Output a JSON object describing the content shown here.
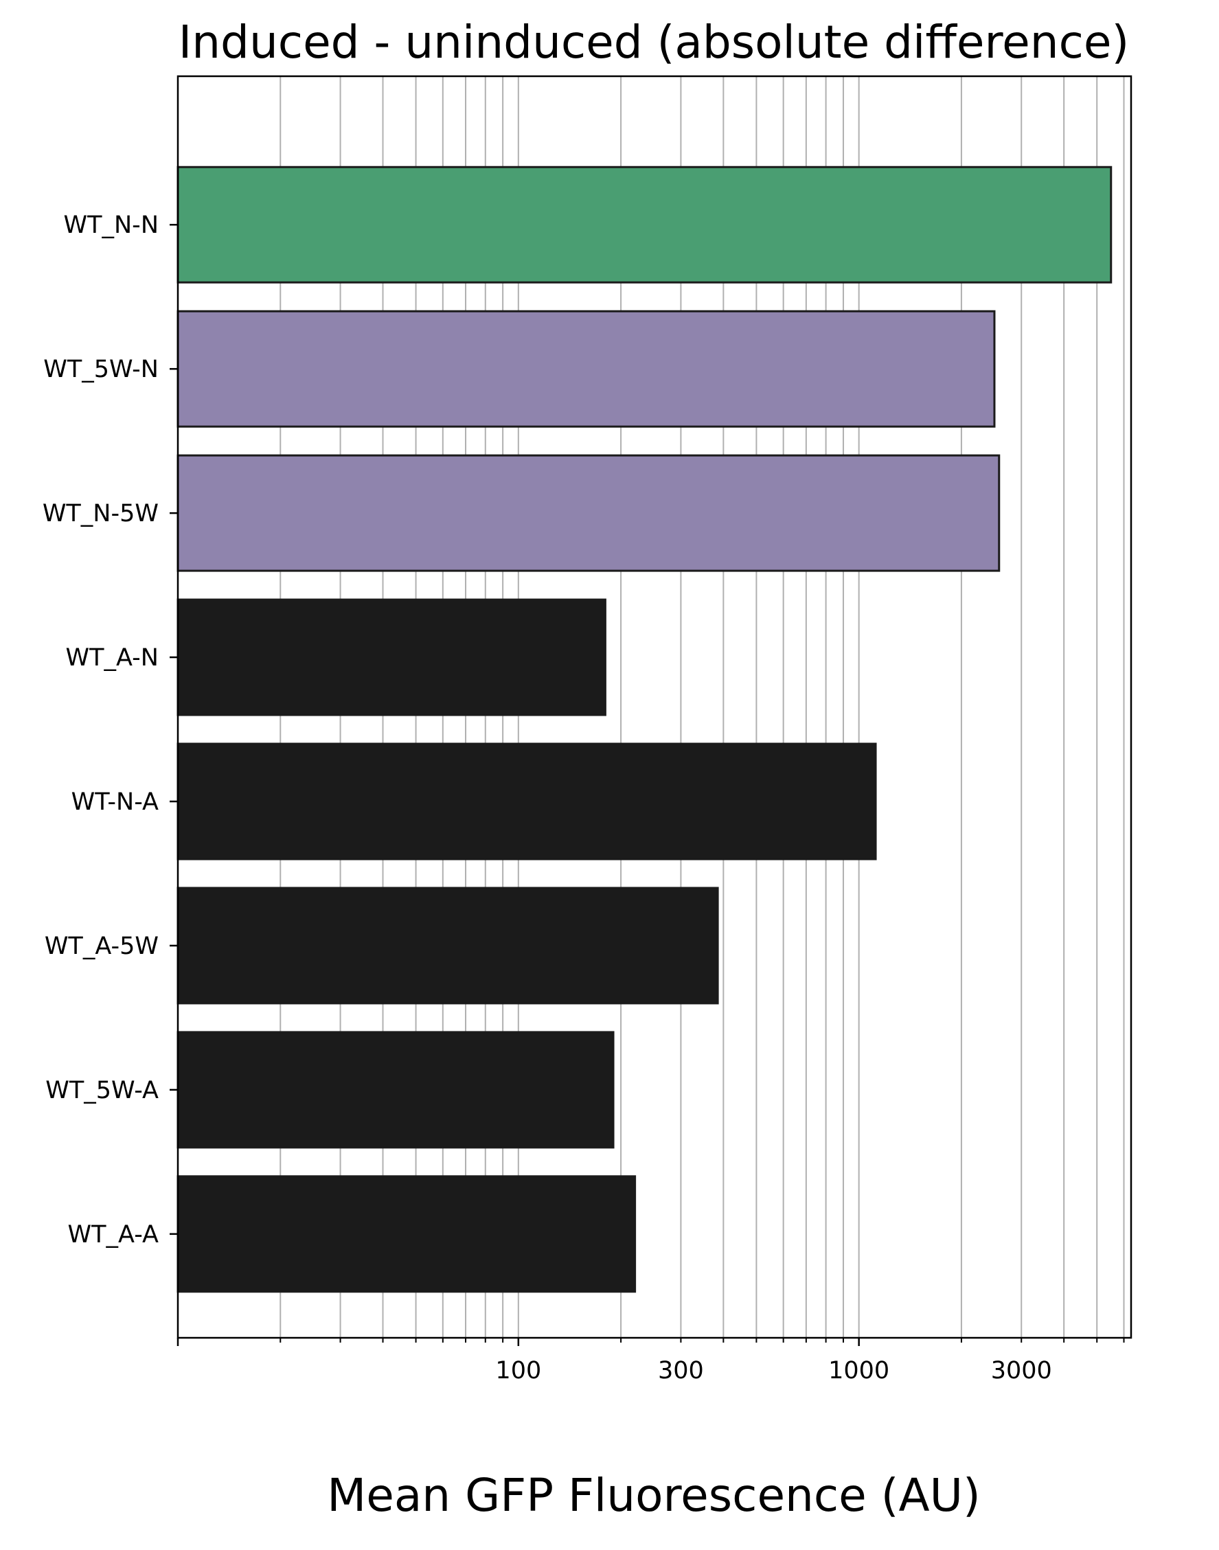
{
  "chart_data": {
    "type": "bar",
    "orientation": "horizontal",
    "title": "Induced - uninduced (absolute difference)",
    "xlabel": "Mean GFP Fluorescence (AU)",
    "ylabel": "",
    "xscale": "log",
    "xlim": [
      10,
      6300
    ],
    "grid": "x major and minor",
    "xticks": [
      {
        "value": 100,
        "label": "100"
      },
      {
        "value": 300,
        "label": "300"
      },
      {
        "value": 1000,
        "label": "1000"
      },
      {
        "value": 3000,
        "label": "3000"
      }
    ],
    "categories": [
      "WT_N-N",
      "WT_5W-N",
      "WT_N-5W",
      "WT_A-N",
      "WT-N-A",
      "WT_A-5W",
      "WT_5W-A",
      "WT_A-A"
    ],
    "values": [
      5500,
      2500,
      2580,
      180,
      1120,
      385,
      190,
      220
    ],
    "colors": [
      "#4a9e72",
      "#8f84ad",
      "#8f84ad",
      "#1b1b1b",
      "#1b1b1b",
      "#1b1b1b",
      "#1b1b1b",
      "#1b1b1b"
    ],
    "edge_color": "#1b1b1b"
  }
}
